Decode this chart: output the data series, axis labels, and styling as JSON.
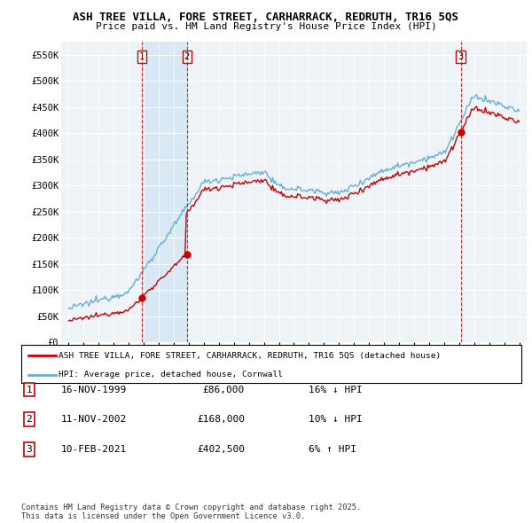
{
  "title": "ASH TREE VILLA, FORE STREET, CARHARRACK, REDRUTH, TR16 5QS",
  "subtitle": "Price paid vs. HM Land Registry's House Price Index (HPI)",
  "ylim": [
    0,
    575000
  ],
  "yticks": [
    0,
    50000,
    100000,
    150000,
    200000,
    250000,
    300000,
    350000,
    400000,
    450000,
    500000,
    550000
  ],
  "ytick_labels": [
    "£0",
    "£50K",
    "£100K",
    "£150K",
    "£200K",
    "£250K",
    "£300K",
    "£350K",
    "£400K",
    "£450K",
    "£500K",
    "£550K"
  ],
  "sale_dates": [
    1999.87,
    2002.87,
    2021.11
  ],
  "sale_prices": [
    86000,
    168000,
    402500
  ],
  "sale_labels": [
    "1",
    "2",
    "3"
  ],
  "hpi_line_color": "#6aaed6",
  "price_line_color": "#cc0000",
  "vline_color": "#cc0000",
  "background_color": "#ffffff",
  "plot_bg_color": "#eef3f8",
  "shade_color": "#d8e8f4",
  "legend_entries": [
    "ASH TREE VILLA, FORE STREET, CARHARRACK, REDRUTH, TR16 5QS (detached house)",
    "HPI: Average price, detached house, Cornwall"
  ],
  "table_rows": [
    [
      "1",
      "16-NOV-1999",
      "£86,000",
      "16% ↓ HPI"
    ],
    [
      "2",
      "11-NOV-2002",
      "£168,000",
      "10% ↓ HPI"
    ],
    [
      "3",
      "10-FEB-2021",
      "£402,500",
      "6% ↑ HPI"
    ]
  ],
  "footnote": "Contains HM Land Registry data © Crown copyright and database right 2025.\nThis data is licensed under the Open Government Licence v3.0.",
  "xlim_start": 1994.5,
  "xlim_end": 2025.5
}
